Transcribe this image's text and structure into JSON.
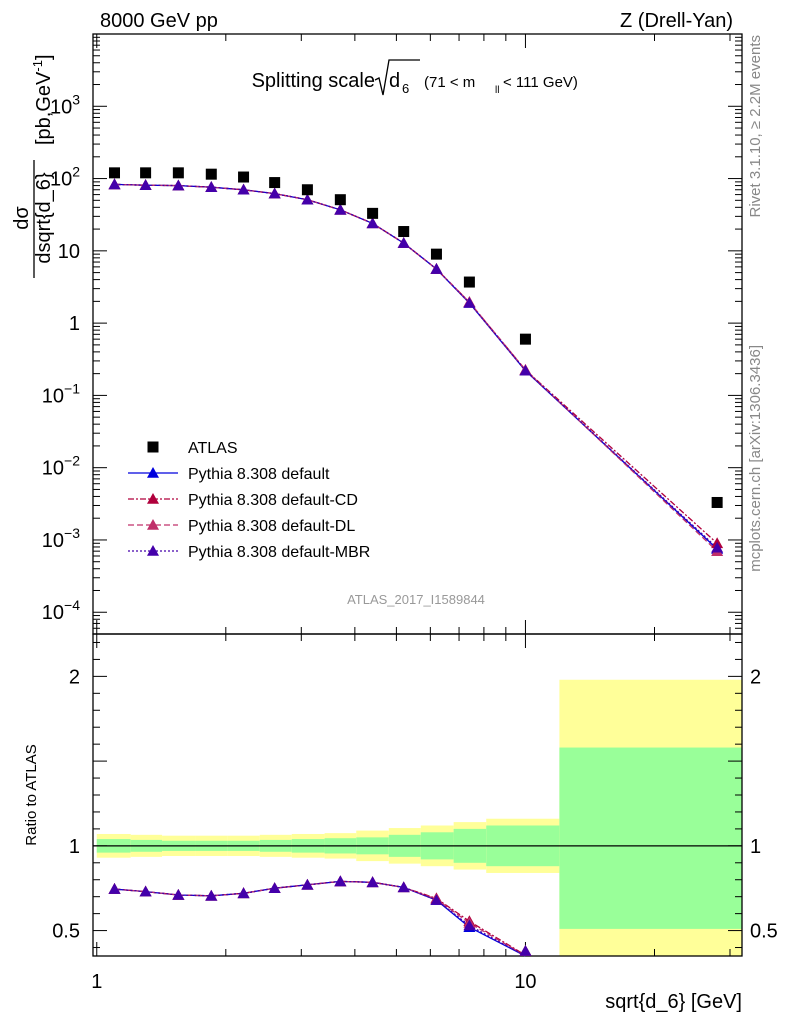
{
  "header": {
    "left": "8000 GeV pp",
    "right": "Z (Drell-Yan)"
  },
  "side_labels": {
    "rivet": "Rivet 3.1.10, ≥ 2.2M events",
    "mcplots": "mcplots.cern.ch [arXiv:1306.3436]"
  },
  "chart_data": [
    {
      "type": "scatter",
      "title_main": "Splitting scale",
      "title_sqrt_base": "d",
      "title_sqrt_sub": "6",
      "title_range_a": "(71 < m",
      "title_range_sub": "ll",
      "title_range_b": " < 111 GeV)",
      "ylabel_num": "dσ",
      "ylabel_den": "dsqrt{d_6}",
      "ylabel_unit": "[pb,GeV",
      "ylabel_unit_exp": "-1",
      "ylabel_unit_close": "]",
      "xscale": "log",
      "yscale": "log",
      "xlim": [
        0.98,
        32
      ],
      "ylim": [
        5e-05,
        10000
      ],
      "y_tick_labels": [
        {
          "v": 0.0001,
          "base": "10",
          "exp": "−4"
        },
        {
          "v": 0.001,
          "base": "10",
          "exp": "−3"
        },
        {
          "v": 0.01,
          "base": "10",
          "exp": "−2"
        },
        {
          "v": 0.1,
          "base": "10",
          "exp": "−1"
        },
        {
          "v": 1,
          "base": "1",
          "exp": ""
        },
        {
          "v": 10,
          "base": "10",
          "exp": ""
        },
        {
          "v": 100,
          "base": "10",
          "exp": "2"
        },
        {
          "v": 1000,
          "base": "10",
          "exp": "3"
        }
      ],
      "analysis_label": "ATLAS_2017_I1589844",
      "legend_position": "lower-left",
      "legend": [
        {
          "label": "ATLAS",
          "marker": "square",
          "color": "#000000",
          "dash": ""
        },
        {
          "label": "Pythia 8.308 default",
          "marker": "triangle",
          "color": "#0000dd",
          "dash": ""
        },
        {
          "label": "Pythia 8.308 default-CD",
          "marker": "triangle",
          "color": "#b0003c",
          "dash": "6 2 2 2"
        },
        {
          "label": "Pythia 8.308 default-DL",
          "marker": "triangle",
          "color": "#c0306a",
          "dash": "6 3"
        },
        {
          "label": "Pythia 8.308 default-MBR",
          "marker": "triangle",
          "color": "#4400aa",
          "dash": "2 2"
        }
      ],
      "x": [
        1.1,
        1.3,
        1.55,
        1.85,
        2.2,
        2.6,
        3.1,
        3.7,
        4.4,
        5.2,
        6.2,
        7.4,
        10.0,
        28.0
      ],
      "series": [
        {
          "name": "ATLAS",
          "values": [
            120,
            120,
            120,
            115,
            105,
            88,
            70,
            51,
            33,
            18.5,
            9.0,
            3.7,
            0.6,
            0.0033
          ]
        },
        {
          "name": "Pythia 8.308 default",
          "values": [
            83,
            81,
            80,
            76,
            70,
            62,
            51,
            37,
            24,
            12.8,
            5.6,
            1.9,
            0.22,
            0.00075
          ]
        },
        {
          "name": "Pythia 8.308 default-CD",
          "values": [
            83,
            81,
            80,
            76,
            70,
            62,
            51,
            37,
            24,
            12.8,
            5.6,
            1.95,
            0.225,
            0.0009
          ]
        },
        {
          "name": "Pythia 8.308 default-DL",
          "values": [
            83,
            81,
            80,
            76,
            70,
            62,
            51,
            37,
            24,
            12.8,
            5.6,
            1.95,
            0.225,
            0.0007
          ]
        },
        {
          "name": "Pythia 8.308 default-MBR",
          "values": [
            83,
            81,
            80,
            76,
            70,
            62,
            51,
            37,
            24,
            12.8,
            5.6,
            1.9,
            0.22,
            0.00078
          ]
        }
      ]
    },
    {
      "type": "line",
      "ylabel": "Ratio to ATLAS",
      "xlabel": "sqrt{d_6} [GeV]",
      "xscale": "log",
      "xlim": [
        0.98,
        32
      ],
      "ylim": [
        0.35,
        2.25
      ],
      "y_ticks": [
        {
          "v": 0.5,
          "label": "0.5"
        },
        {
          "v": 1,
          "label": "1"
        },
        {
          "v": 2,
          "label": "2"
        }
      ],
      "x_ticks": [
        {
          "v": 1,
          "label": "1"
        },
        {
          "v": 10,
          "label": "10"
        }
      ],
      "bands": {
        "edges": [
          1.0,
          1.2,
          1.42,
          1.7,
          2.02,
          2.4,
          2.85,
          3.4,
          4.03,
          4.8,
          5.7,
          6.8,
          8.1,
          12.0,
          32.0
        ],
        "total_lo": [
          0.93,
          0.935,
          0.94,
          0.94,
          0.94,
          0.935,
          0.93,
          0.925,
          0.91,
          0.895,
          0.88,
          0.86,
          0.84,
          0.35
        ],
        "total_hi": [
          1.07,
          1.065,
          1.06,
          1.06,
          1.06,
          1.065,
          1.07,
          1.075,
          1.09,
          1.105,
          1.12,
          1.14,
          1.16,
          1.98
        ],
        "stat_lo": [
          0.96,
          0.965,
          0.97,
          0.97,
          0.97,
          0.965,
          0.96,
          0.955,
          0.95,
          0.935,
          0.92,
          0.9,
          0.88,
          0.51
        ],
        "stat_hi": [
          1.04,
          1.035,
          1.03,
          1.03,
          1.03,
          1.035,
          1.04,
          1.045,
          1.05,
          1.065,
          1.08,
          1.1,
          1.12,
          1.58
        ]
      },
      "x": [
        1.1,
        1.3,
        1.55,
        1.85,
        2.2,
        2.6,
        3.1,
        3.7,
        4.4,
        5.2,
        6.2,
        7.4,
        10.0
      ],
      "series": [
        {
          "name": "Pythia 8.308 default",
          "values": [
            0.745,
            0.73,
            0.71,
            0.705,
            0.72,
            0.75,
            0.77,
            0.79,
            0.785,
            0.755,
            0.68,
            0.52,
            0.35
          ]
        },
        {
          "name": "Pythia 8.308 default-CD",
          "values": [
            0.745,
            0.73,
            0.71,
            0.705,
            0.72,
            0.75,
            0.77,
            0.79,
            0.785,
            0.755,
            0.69,
            0.555,
            0.355
          ]
        },
        {
          "name": "Pythia 8.308 default-DL",
          "values": [
            0.745,
            0.73,
            0.71,
            0.705,
            0.72,
            0.75,
            0.77,
            0.79,
            0.785,
            0.755,
            0.685,
            0.545,
            0.352
          ]
        },
        {
          "name": "Pythia 8.308 default-MBR",
          "values": [
            0.745,
            0.73,
            0.71,
            0.705,
            0.72,
            0.75,
            0.77,
            0.79,
            0.785,
            0.755,
            0.68,
            0.53,
            0.35
          ]
        }
      ]
    }
  ]
}
